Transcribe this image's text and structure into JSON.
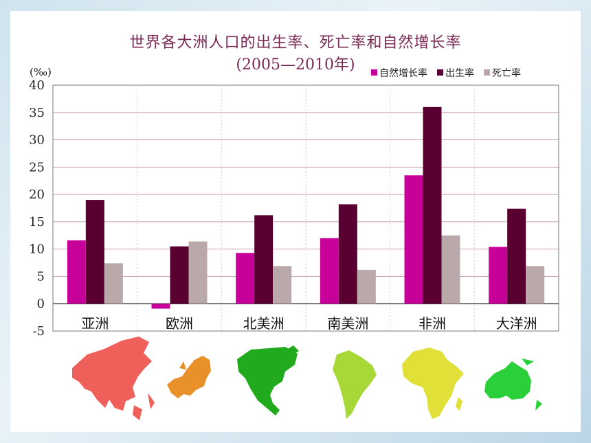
{
  "chart_data": {
    "type": "bar",
    "title": "世界各大洲人口的出生率、死亡率和自然增长率",
    "subtitle": "(2005—2010年)",
    "ylabel": "(‰)",
    "ylim": [
      -5,
      40
    ],
    "yticks": [
      -5,
      0,
      5,
      10,
      15,
      20,
      25,
      30,
      35,
      40
    ],
    "grid": true,
    "legend": "top-right",
    "categories": [
      "亚洲",
      "欧洲",
      "北美洲",
      "南美洲",
      "非洲",
      "大洋洲"
    ],
    "series": [
      {
        "name": "自然增长率",
        "color": "#c8009a",
        "values": [
          11.6,
          -0.9,
          9.3,
          12.0,
          23.5,
          10.4
        ]
      },
      {
        "name": "出生率",
        "color": "#5a0030",
        "values": [
          19.0,
          10.5,
          16.2,
          18.2,
          36.0,
          17.4
        ]
      },
      {
        "name": "死亡率",
        "color": "#b9a9ab",
        "values": [
          7.4,
          11.4,
          6.9,
          6.2,
          12.5,
          6.9
        ]
      }
    ]
  },
  "maps": [
    {
      "name": "asia-map-icon",
      "color": "#f0605a"
    },
    {
      "name": "europe-map-icon",
      "color": "#e8902a"
    },
    {
      "name": "north-america-map-icon",
      "color": "#22aa1e"
    },
    {
      "name": "south-america-map-icon",
      "color": "#a8d838"
    },
    {
      "name": "africa-map-icon",
      "color": "#e0e038"
    },
    {
      "name": "oceania-map-icon",
      "color": "#2ad03a"
    }
  ]
}
